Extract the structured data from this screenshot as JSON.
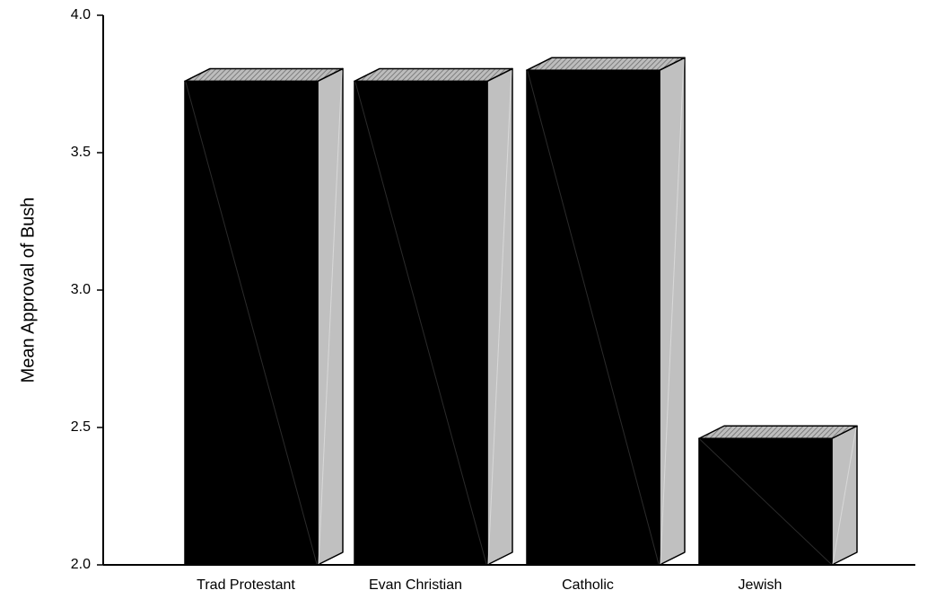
{
  "chart_data": {
    "type": "bar",
    "style": "3d-column",
    "categories": [
      "Trad Protestant",
      "Evan Christian",
      "Catholic",
      "Jewish"
    ],
    "values": [
      3.76,
      3.76,
      3.8,
      2.46
    ],
    "title": "",
    "xlabel": "",
    "ylabel": "Mean Approval of Bush",
    "ylim": [
      2.0,
      4.0
    ],
    "yticks": [
      "2.0",
      "2.5",
      "3.0",
      "3.5",
      "4.0"
    ],
    "grid": false,
    "legend": "none",
    "colors": {
      "front": "#000000",
      "side": "#c0c0c0",
      "top": "#a9a9a9",
      "axis": "#000000"
    }
  }
}
